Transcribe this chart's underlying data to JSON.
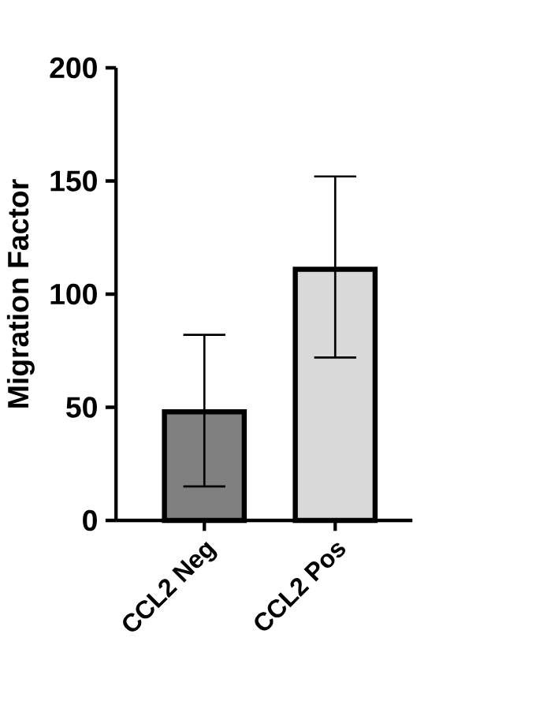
{
  "chart_data": {
    "type": "bar",
    "ylabel": "Migration Factor",
    "categories": [
      "CCL2 Neg",
      "CCL2 Pos"
    ],
    "values": [
      48,
      111
    ],
    "colors": [
      "#808080",
      "#d9d9d9"
    ],
    "errors": [
      [
        15,
        82
      ],
      [
        72,
        152
      ]
    ],
    "ylim": [
      0,
      200
    ],
    "yticks": [
      0,
      50,
      100,
      150,
      200
    ]
  }
}
